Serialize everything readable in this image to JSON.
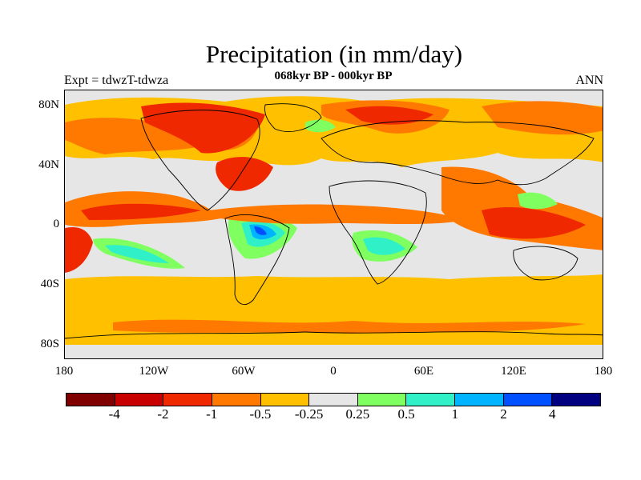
{
  "title": "Precipitation (in mm/day)",
  "subtitle": "068kyr BP - 000kyr BP",
  "left_label": "Expt = tdwzT-tdwza",
  "right_label": "ANN",
  "y_ticks": [
    "80N",
    "40N",
    "0",
    "40S",
    "80S"
  ],
  "x_ticks": [
    "180",
    "120W",
    "60W",
    "0",
    "60E",
    "120E",
    "180"
  ],
  "colorbar": {
    "colors": [
      "#800000",
      "#c80000",
      "#f02800",
      "#ff7800",
      "#ffc000",
      "#e6e6e6",
      "#80ff60",
      "#30f0c8",
      "#00b4ff",
      "#0050ff",
      "#000080"
    ],
    "labels": [
      "-4",
      "-2",
      "-1",
      "-0.5",
      "-0.25",
      "0.25",
      "0.5",
      "1",
      "2",
      "4"
    ]
  },
  "colors": {
    "strong_drying": "#f02800",
    "drying": "#ff7800",
    "weak_drying": "#ffc000",
    "neutral": "#e6e6e6",
    "weak_wetting": "#80ff60",
    "wetting": "#30f0c8",
    "strong_wetting": "#00b4ff",
    "very_strong_wetting": "#0050ff"
  }
}
